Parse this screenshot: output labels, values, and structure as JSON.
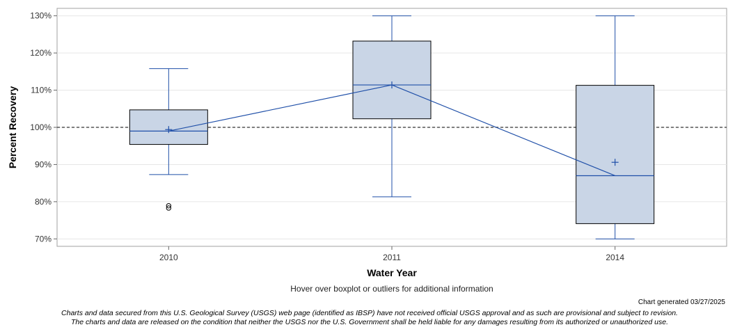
{
  "chart_data": {
    "type": "boxplot",
    "xlabel": "Water Year",
    "ylabel": "Percent Recovery",
    "ylim": [
      68,
      132
    ],
    "yticks": [
      70,
      80,
      90,
      100,
      110,
      120,
      130
    ],
    "ytick_suffix": "%",
    "categories": [
      "2010",
      "2011",
      "2014"
    ],
    "boxes": [
      {
        "category": "2010",
        "whisker_low": 87.3,
        "q1": 95.4,
        "median": 99.0,
        "q3": 104.7,
        "whisker_high": 115.8,
        "mean": 99.4,
        "outliers": [
          78.3,
          78.9
        ]
      },
      {
        "category": "2011",
        "whisker_low": 81.3,
        "q1": 102.3,
        "median": 111.4,
        "q3": 123.2,
        "whisker_high": 130.0,
        "mean": 111.4,
        "outliers": []
      },
      {
        "category": "2014",
        "whisker_low": 70.0,
        "q1": 74.1,
        "median": 87.0,
        "q3": 111.3,
        "whisker_high": 130.0,
        "mean": 90.6,
        "outliers": []
      }
    ],
    "median_line": "connected",
    "reference_line": 100,
    "grid": true
  },
  "notes": {
    "hover": "Hover over boxplot or outliers for additional information",
    "generated": "Chart generated 03/27/2025",
    "disclaimer_line1": "Charts and data secured from this U.S. Geological Survey (USGS) web page (identified as IBSP) have not received official USGS approval and as such are provisional and subject to revision.",
    "disclaimer_line2": "The charts and data are released on the condition that neither the USGS nor the U.S. Government shall be held liable for any damages resulting from its authorized or unauthorized use."
  },
  "colors": {
    "box_fill": "#c9d5e6",
    "box_edge": "#000000",
    "whisker": "#1f4fa8",
    "reference": "#555555",
    "grid": "#e6e6e6"
  }
}
